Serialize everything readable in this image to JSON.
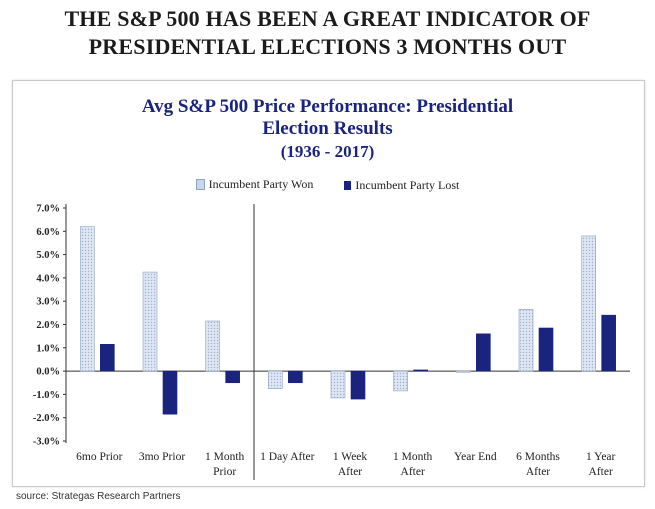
{
  "headline": {
    "line1": "THE S&P 500 HAS BEEN A GREAT INDICATOR OF",
    "line2": "PRESIDENTIAL ELECTIONS 3 MONTHS OUT"
  },
  "source": "source: Strategas Research Partners",
  "colors": {
    "won": "#c9d6ea",
    "lost": "#1a237e",
    "title": "#1a237e"
  },
  "chart_data": {
    "type": "bar",
    "title_lines": [
      "Avg S&P 500 Price Performance: Presidential",
      "Election Results"
    ],
    "subtitle": "(1936 - 2017)",
    "categories": [
      [
        "6mo Prior"
      ],
      [
        "3mo Prior"
      ],
      [
        "1 Month",
        "Prior"
      ],
      [
        "1 Day After"
      ],
      [
        "1 Week",
        "After"
      ],
      [
        "1 Month",
        "After"
      ],
      [
        "Year End"
      ],
      [
        "6 Months",
        "After"
      ],
      [
        "1 Year",
        "After"
      ]
    ],
    "series": [
      {
        "name": "Incumbent Party Won",
        "values": [
          6.2,
          4.25,
          2.15,
          -0.75,
          -1.15,
          -0.85,
          -0.05,
          2.65,
          5.8
        ]
      },
      {
        "name": "Incumbent Party Lost",
        "values": [
          1.15,
          -1.85,
          -0.5,
          -0.5,
          -1.2,
          0.05,
          1.6,
          1.85,
          2.4
        ]
      }
    ],
    "yticks": [
      "7.0%",
      "6.0%",
      "5.0%",
      "4.0%",
      "3.0%",
      "2.0%",
      "1.0%",
      "0.0%",
      "-1.0%",
      "-2.0%",
      "-3.0%"
    ],
    "ylim": [
      -3,
      7
    ],
    "legend_position": "top-center",
    "divider_after_category": 3,
    "grid": false
  }
}
